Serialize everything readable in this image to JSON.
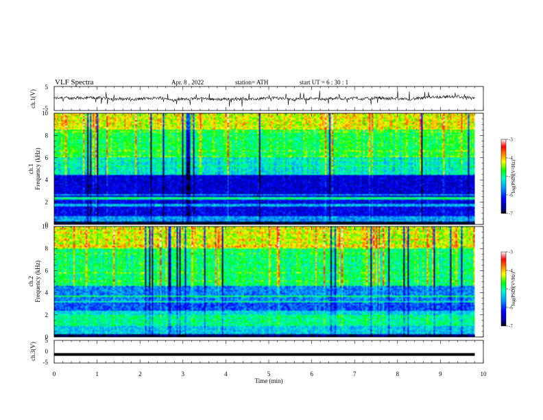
{
  "header": {
    "title": "VLF Spectra",
    "date": "Apr. 8 , 2022",
    "station": "station= ATH",
    "start": "start UT = 6 : 30 : 1"
  },
  "chart_data": [
    {
      "type": "line",
      "panel": "ch1-waveform",
      "ylabel": "ch.1(V)",
      "ylim": [
        -5,
        5
      ],
      "yticks": [
        "5",
        "-5"
      ],
      "xlim": [
        0,
        10
      ],
      "baseline_value": 0,
      "color": "#000000"
    },
    {
      "type": "heatmap",
      "panel": "ch1-spectrogram",
      "ylabel_line1": "ch.1",
      "ylabel_line2": "Frequency (kHz)",
      "ylim": [
        0,
        10
      ],
      "yticks": [
        "0",
        "2",
        "4",
        "6",
        "8",
        "10"
      ],
      "xlim": [
        0,
        10
      ],
      "data_end_min": 9.8,
      "colorbar": {
        "label": "log(PSD)(V²/Hz)",
        "range": [
          -7,
          -3
        ],
        "ticks": [
          "-3",
          "-4",
          "-5",
          "-6",
          "-7"
        ]
      },
      "bands_khz_log_psd": [
        {
          "f": [
            0,
            0.3
          ],
          "v": -7.0
        },
        {
          "f": [
            0.3,
            0.8
          ],
          "v": -5.6
        },
        {
          "f": [
            0.8,
            2.2
          ],
          "v": -6.3
        },
        {
          "f": [
            2.2,
            2.5
          ],
          "v": -5.0
        },
        {
          "f": [
            2.5,
            4.5
          ],
          "v": -6.4
        },
        {
          "f": [
            4.5,
            6.0
          ],
          "v": -5.2
        },
        {
          "f": [
            6.0,
            8.5
          ],
          "v": -4.8
        },
        {
          "f": [
            8.5,
            10.0
          ],
          "v": -4.2
        }
      ]
    },
    {
      "type": "heatmap",
      "panel": "ch2-spectrogram",
      "ylabel_line1": "ch.2",
      "ylabel_line2": "Frequency (kHz)",
      "ylim": [
        0,
        10
      ],
      "yticks": [
        "0",
        "2",
        "4",
        "6",
        "8",
        "10"
      ],
      "xlim": [
        0,
        10
      ],
      "data_end_min": 9.8,
      "colorbar": {
        "label": "log(PSD)(V²/Hz)",
        "range": [
          -7,
          -3
        ],
        "ticks": [
          "-3",
          "-4",
          "-5",
          "-6",
          "-7"
        ]
      },
      "bands_khz_log_psd": [
        {
          "f": [
            0,
            0.3
          ],
          "v": -6.8
        },
        {
          "f": [
            0.3,
            1.0
          ],
          "v": -5.4
        },
        {
          "f": [
            1.0,
            2.0
          ],
          "v": -5.0
        },
        {
          "f": [
            2.0,
            2.4
          ],
          "v": -5.3
        },
        {
          "f": [
            2.4,
            3.3
          ],
          "v": -5.9
        },
        {
          "f": [
            3.3,
            4.6
          ],
          "v": -5.7
        },
        {
          "f": [
            4.6,
            8.0
          ],
          "v": -4.9
        },
        {
          "f": [
            8.0,
            10.0
          ],
          "v": -4.3
        }
      ]
    },
    {
      "type": "line",
      "panel": "ch3-waveform",
      "ylabel": "ch.3(V)",
      "ylim": [
        -5,
        5
      ],
      "yticks": [
        "5",
        "0",
        "-5"
      ],
      "xlim": [
        0,
        10
      ],
      "constant_value": -1.2,
      "xlabel": "Time (min)",
      "xticks": [
        "0",
        "1",
        "2",
        "3",
        "4",
        "5",
        "6",
        "7",
        "8",
        "9",
        "10"
      ],
      "color": "#000000"
    }
  ]
}
